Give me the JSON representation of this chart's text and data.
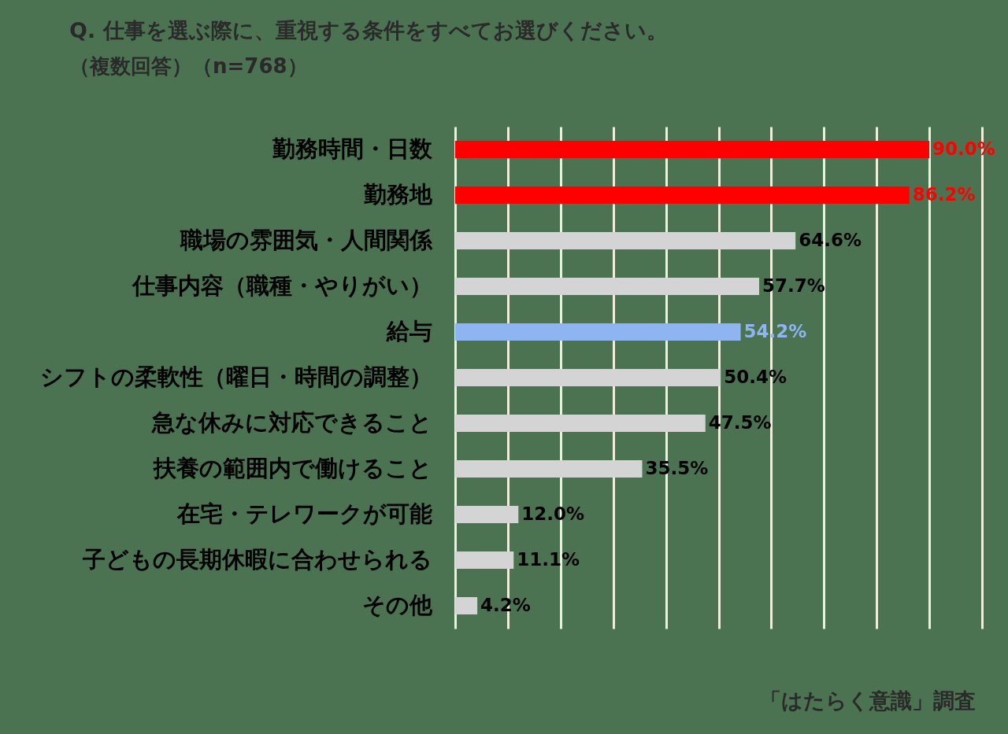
{
  "chart_data": {
    "type": "bar",
    "orientation": "horizontal",
    "title": "Q. 仕事を選ぶ際に、重視する条件をすべてお選びください。",
    "subtitle": "（複数回答）（n=768）",
    "categories": [
      "勤務時間・日数",
      "勤務地",
      "職場の雰囲気・人間関係",
      "仕事内容（職種・やりがい）",
      "給与",
      "シフトの柔軟性（曜日・時間の調整）",
      "急な休みに対応できること",
      "扶養の範囲内で働けること",
      "在宅・テレワークが可能",
      "子どもの長期休暇に合わせられる",
      "その他"
    ],
    "values": [
      90.0,
      86.2,
      64.6,
      57.7,
      54.2,
      50.4,
      47.5,
      35.5,
      12.0,
      11.1,
      4.2
    ],
    "value_labels": [
      "90.0%",
      "86.2%",
      "64.6%",
      "57.7%",
      "54.2%",
      "50.4%",
      "47.5%",
      "35.5%",
      "12.0%",
      "11.1%",
      "4.2%"
    ],
    "colors": [
      "#ff0000",
      "#ff0000",
      "#d4d4d4",
      "#d4d4d4",
      "#8fb4f2",
      "#d4d4d4",
      "#d4d4d4",
      "#d4d4d4",
      "#d4d4d4",
      "#d4d4d4",
      "#d4d4d4"
    ],
    "xlim": [
      0,
      100
    ],
    "xticks": [
      {
        "value": 0,
        "label": null
      },
      {
        "value": 10,
        "label": null
      },
      {
        "value": 20,
        "label": null
      },
      {
        "value": 30,
        "label": null
      },
      {
        "value": 40,
        "label": null
      },
      {
        "value": 50,
        "label": null
      },
      {
        "value": 60,
        "label": null
      },
      {
        "value": 70,
        "label": null
      },
      {
        "value": 80,
        "label": null
      },
      {
        "value": 90,
        "label": null
      },
      {
        "value": 100,
        "label": null
      }
    ],
    "grid": "x",
    "tick_labels": "y",
    "annotations": [
      "「はたらく意識」調査"
    ]
  }
}
